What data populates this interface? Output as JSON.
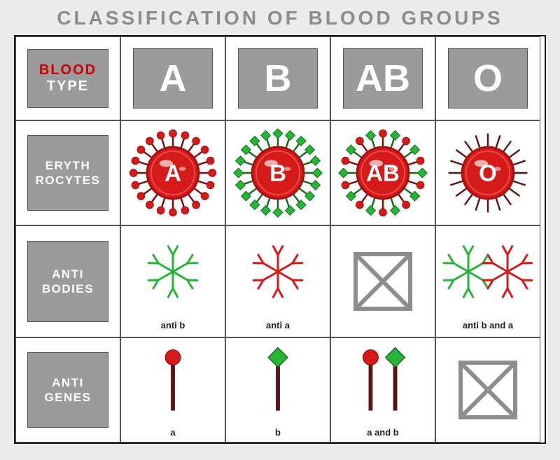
{
  "title": "CLASSIFICATION OF BLOOD GROUPS",
  "colors": {
    "red": "#d51a1a",
    "red_dark": "#a31010",
    "red_light": "#f06a6a",
    "green": "#27b537",
    "green_dark": "#0f6b1b",
    "brown": "#5a1414",
    "gray_box": "#9b9b9b",
    "gray_icon": "#8d8d8d",
    "bg": "#ebebeb",
    "text_gray": "#8c8c8c",
    "text_white": "#ffffff",
    "text_black": "#222222"
  },
  "header": {
    "row_label_line1": "BLOOD",
    "row_label_line2": "TYPE",
    "types": [
      "A",
      "B",
      "AB",
      "O"
    ]
  },
  "rows": {
    "erythrocytes": {
      "label_line1": "ERYTH",
      "label_line2": "ROCYTES",
      "cells": [
        {
          "letter": "A",
          "antigens": [
            "a"
          ]
        },
        {
          "letter": "B",
          "antigens": [
            "b"
          ]
        },
        {
          "letter": "AB",
          "antigens": [
            "a",
            "b"
          ]
        },
        {
          "letter": "O",
          "antigens": []
        }
      ]
    },
    "antibodies": {
      "label_line1": "ANTI",
      "label_line2": "BODIES",
      "cells": [
        {
          "kind": "anti",
          "colors": [
            "green"
          ],
          "caption": "anti  b"
        },
        {
          "kind": "anti",
          "colors": [
            "red"
          ],
          "caption": "anti  a"
        },
        {
          "kind": "none"
        },
        {
          "kind": "anti",
          "colors": [
            "green",
            "red"
          ],
          "caption": "anti b and a"
        }
      ]
    },
    "antigenes": {
      "label_line1": "ANTI",
      "label_line2": "GENES",
      "cells": [
        {
          "antigens": [
            "a"
          ],
          "caption": "a"
        },
        {
          "antigens": [
            "b"
          ],
          "caption": "b"
        },
        {
          "antigens": [
            "a",
            "b"
          ],
          "caption": "a and b"
        },
        {
          "antigens": [],
          "caption": ""
        }
      ]
    }
  }
}
